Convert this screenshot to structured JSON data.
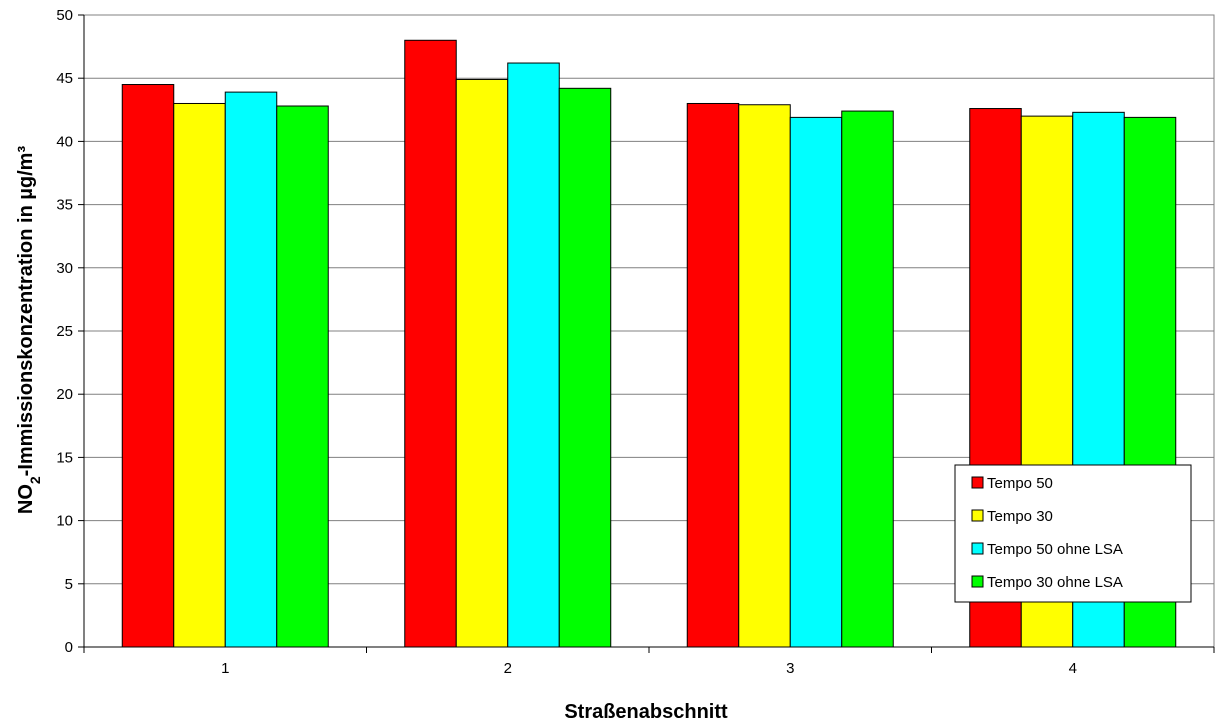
{
  "chart_data": {
    "type": "bar",
    "title": "",
    "xlabel": "Straßenabschnitt",
    "ylabel_main": "NO",
    "ylabel_sub": "2",
    "ylabel_rest": "-Immissionskonzentration in µg/m³",
    "categories": [
      "1",
      "2",
      "3",
      "4"
    ],
    "ylim": [
      0,
      50
    ],
    "yticks": [
      "0",
      "5",
      "10",
      "15",
      "20",
      "25",
      "30",
      "35",
      "40",
      "45",
      "50"
    ],
    "grid": true,
    "legend_position": "bottom-right",
    "series": [
      {
        "name": "Tempo 50",
        "color": "#ff0000",
        "values": [
          44.5,
          48.0,
          43.0,
          42.6
        ]
      },
      {
        "name": "Tempo 30",
        "color": "#ffff00",
        "values": [
          43.0,
          44.9,
          42.9,
          42.0
        ]
      },
      {
        "name": "Tempo 50 ohne LSA",
        "color": "#00ffff",
        "values": [
          43.9,
          46.2,
          41.9,
          42.3
        ]
      },
      {
        "name": "Tempo 30 ohne LSA",
        "color": "#00ff00",
        "values": [
          42.8,
          44.2,
          42.4,
          41.9
        ]
      }
    ]
  }
}
